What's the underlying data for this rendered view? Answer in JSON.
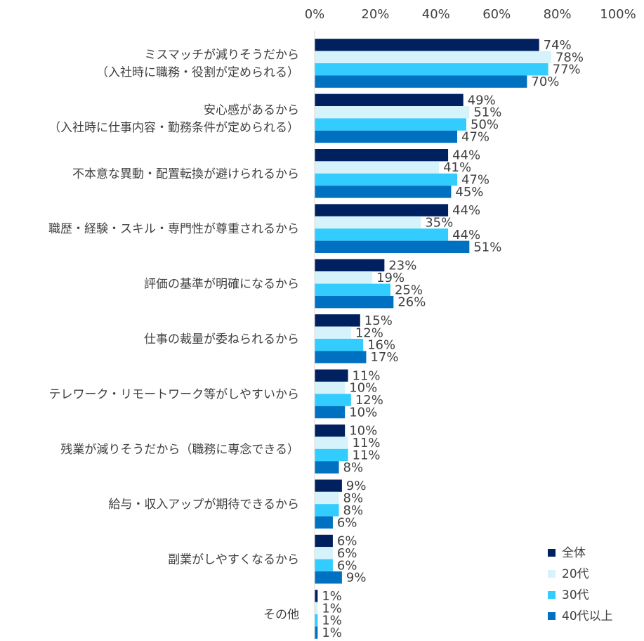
{
  "chart_data": {
    "type": "bar",
    "orientation": "horizontal",
    "xlim": [
      0,
      100
    ],
    "x_ticks": [
      "0%",
      "20%",
      "40%",
      "60%",
      "80%",
      "100%"
    ],
    "categories": [
      [
        "ミスマッチが減りそうだから",
        "（入社時に職務・役割が定められる）"
      ],
      [
        "安心感があるから",
        "（入社時に仕事内容・勤務条件が定められる）"
      ],
      [
        "不本意な異動・配置転換が避けられるから"
      ],
      [
        "職歴・経験・スキル・専門性が尊重されるから"
      ],
      [
        "評価の基準が明確になるから"
      ],
      [
        "仕事の裁量が委ねられるから"
      ],
      [
        "テレワーク・リモートワーク等がしやすいから"
      ],
      [
        "残業が減りそうだから（職務に専念できる）"
      ],
      [
        "給与・収入アップが期待できるから"
      ],
      [
        "副業がしやすくなるから"
      ],
      [
        "その他"
      ]
    ],
    "series": [
      {
        "name": "全体",
        "color": "#002060",
        "values": [
          74,
          49,
          44,
          44,
          23,
          15,
          11,
          10,
          9,
          6,
          1
        ]
      },
      {
        "name": "20代",
        "color": "#d6f3fc",
        "values": [
          78,
          51,
          41,
          35,
          19,
          12,
          10,
          11,
          8,
          6,
          1
        ]
      },
      {
        "name": "30代",
        "color": "#33ccff",
        "values": [
          77,
          50,
          47,
          44,
          25,
          16,
          12,
          11,
          8,
          6,
          1
        ]
      },
      {
        "name": "40代以上",
        "color": "#0070c0",
        "values": [
          70,
          47,
          45,
          51,
          26,
          17,
          10,
          8,
          6,
          9,
          1
        ]
      }
    ],
    "value_suffix": "%",
    "legend_position": "bottom-right",
    "grid": false
  }
}
